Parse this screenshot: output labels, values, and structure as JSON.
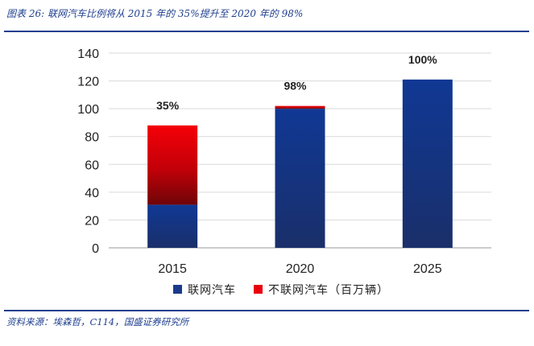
{
  "figure": {
    "title": "图表 26:  联网汽车比例将从 2015 年的 35%提升至 2020 年的 98%",
    "source": "资料来源：埃森哲，C114，国盛证券研究所"
  },
  "chart_data": {
    "type": "bar",
    "stacked": true,
    "categories": [
      "2015",
      "2020",
      "2025"
    ],
    "series": [
      {
        "name": "联网汽车",
        "values": [
          31,
          100,
          121
        ],
        "color": "#1c3a8c"
      },
      {
        "name": "不联网汽车（百万辆）",
        "values": [
          57,
          2,
          0
        ],
        "color": "#e8000c"
      }
    ],
    "data_labels": [
      "35%",
      "98%",
      "100%"
    ],
    "yticks": [
      0,
      20,
      40,
      60,
      80,
      100,
      120,
      140
    ],
    "ylim": [
      0,
      140
    ],
    "grid": true,
    "legend_position": "bottom"
  }
}
